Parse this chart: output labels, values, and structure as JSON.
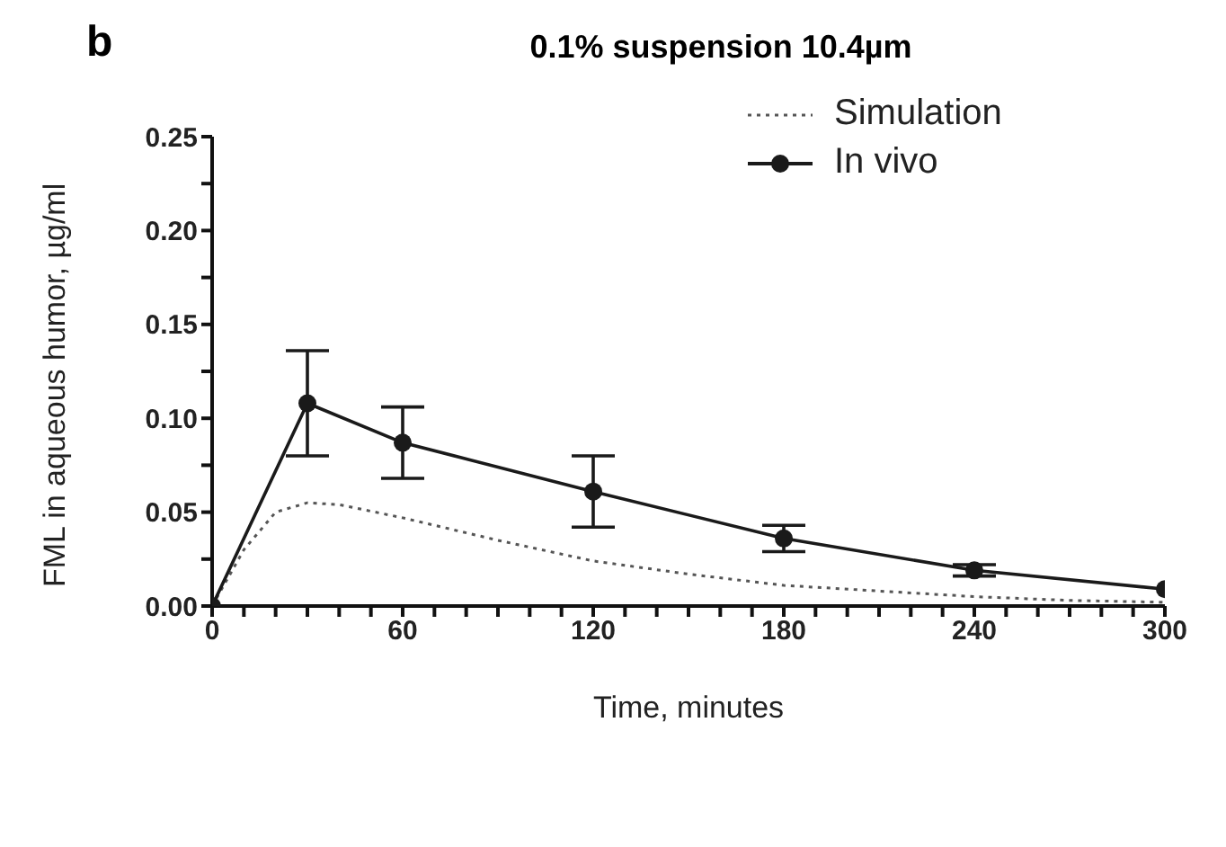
{
  "chart_data": {
    "type": "line",
    "title": "0.1% suspension 10.4µm",
    "xlabel": "Time, minutes",
    "ylabel": "FML in aqueous humor, µg/ml",
    "annotations": [
      "b"
    ],
    "xlim": [
      0,
      300
    ],
    "xticks": [
      0,
      {
        "value": 10,
        "label": null
      },
      {
        "value": 20,
        "label": null
      },
      {
        "value": 30,
        "label": null
      },
      {
        "value": 40,
        "label": null
      },
      {
        "value": 50,
        "label": null
      },
      60,
      {
        "value": 70,
        "label": null
      },
      {
        "value": 80,
        "label": null
      },
      {
        "value": 90,
        "label": null
      },
      {
        "value": 100,
        "label": null
      },
      {
        "value": 110,
        "label": null
      },
      120,
      {
        "value": 130,
        "label": null
      },
      {
        "value": 140,
        "label": null
      },
      {
        "value": 150,
        "label": null
      },
      {
        "value": 160,
        "label": null
      },
      {
        "value": 170,
        "label": null
      },
      180,
      {
        "value": 190,
        "label": null
      },
      {
        "value": 200,
        "label": null
      },
      {
        "value": 210,
        "label": null
      },
      {
        "value": 220,
        "label": null
      },
      {
        "value": 230,
        "label": null
      },
      240,
      {
        "value": 250,
        "label": null
      },
      {
        "value": 260,
        "label": null
      },
      {
        "value": 270,
        "label": null
      },
      {
        "value": 280,
        "label": null
      },
      {
        "value": 290,
        "label": null
      },
      300
    ],
    "ylim": [
      0,
      0.25
    ],
    "yticks": [
      {
        "value": 0,
        "label": "0.00"
      },
      {
        "value": 0.025,
        "label": null
      },
      {
        "value": 0.05,
        "label": "0.05"
      },
      {
        "value": 0.075,
        "label": null
      },
      {
        "value": 0.1,
        "label": "0.10"
      },
      {
        "value": 0.125,
        "label": null
      },
      {
        "value": 0.15,
        "label": "0.15"
      },
      {
        "value": 0.175,
        "label": null
      },
      {
        "value": 0.2,
        "label": "0.20"
      },
      {
        "value": 0.225,
        "label": null
      },
      {
        "value": 0.25,
        "label": "0.25"
      }
    ],
    "legend": "top right",
    "series": [
      {
        "name": "Simulation",
        "color": "#555555",
        "line_style": "dotted",
        "marker": "none",
        "x": [
          0,
          10,
          20,
          30,
          40,
          60,
          90,
          120,
          150,
          180,
          210,
          240,
          270,
          300
        ],
        "values": [
          0,
          0.03,
          0.05,
          0.055,
          0.054,
          0.047,
          0.035,
          0.024,
          0.017,
          0.011,
          0.008,
          0.005,
          0.003,
          0.002
        ]
      },
      {
        "name": "In vivo",
        "color": "#1a1a1a",
        "line_style": "solid",
        "marker": "circle",
        "x": [
          0,
          30,
          60,
          120,
          180,
          240,
          300
        ],
        "values": [
          0,
          0.108,
          0.087,
          0.061,
          0.036,
          0.019,
          0.009
        ],
        "errors": [
          null,
          [
            0.08,
            0.136
          ],
          [
            0.068,
            0.106
          ],
          [
            0.042,
            0.08
          ],
          [
            0.029,
            0.043
          ],
          [
            0.016,
            0.022
          ],
          null
        ]
      }
    ]
  }
}
